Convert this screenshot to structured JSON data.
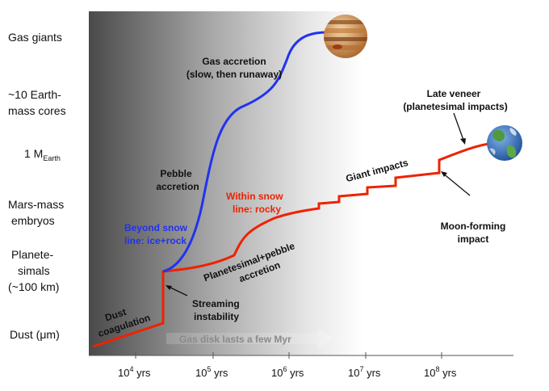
{
  "y_levels": [
    {
      "key": "gas",
      "lines": [
        "Gas giants"
      ]
    },
    {
      "key": "cores",
      "lines": [
        "~10 Earth-",
        "mass cores"
      ]
    },
    {
      "key": "earth",
      "main": "1 M",
      "sub": "Earth"
    },
    {
      "key": "mars",
      "lines": [
        "Mars-mass",
        "embryos"
      ]
    },
    {
      "key": "planetesimals",
      "lines": [
        "Planete-",
        "simals",
        "(~100 km)"
      ]
    },
    {
      "key": "dust",
      "main": "Dust (",
      "mu": "μ",
      "tail": "m)"
    }
  ],
  "x_ticks": [
    {
      "base": "10",
      "exp": "4",
      "unit": " yrs"
    },
    {
      "base": "10",
      "exp": "5",
      "unit": " yrs"
    },
    {
      "base": "10",
      "exp": "6",
      "unit": " yrs"
    },
    {
      "base": "10",
      "exp": "7",
      "unit": " yrs"
    },
    {
      "base": "10",
      "exp": "8",
      "unit": " yrs"
    }
  ],
  "annotations": {
    "gas_accretion": [
      "Gas accretion",
      "(slow, then runaway)"
    ],
    "pebble_accretion": [
      "Pebble",
      "accretion"
    ],
    "beyond_snow": [
      "Beyond snow",
      "line: ice+rock"
    ],
    "within_snow": [
      "Within snow",
      "line: rocky"
    ],
    "planetesimal_pebble": [
      "Planetesimal+pebble",
      "accretion"
    ],
    "dust_coagulation": [
      "Dust",
      "coagulation"
    ],
    "streaming": [
      "Streaming",
      "instability"
    ],
    "giant_impacts": "Giant impacts",
    "late_veneer": [
      "Late veneer",
      "(planetesimal impacts)"
    ],
    "moon_forming": [
      "Moon-forming",
      "impact"
    ],
    "gas_disk": "Gas disk lasts a few Myr"
  },
  "colors": {
    "blue_path": "#2233ee",
    "red_path": "#ee2200",
    "beyond_text": "#2233ee",
    "within_text": "#ee2200",
    "disk_dark": "#4a4a4a"
  },
  "icons": [
    "jupiter-icon",
    "earth-icon"
  ]
}
